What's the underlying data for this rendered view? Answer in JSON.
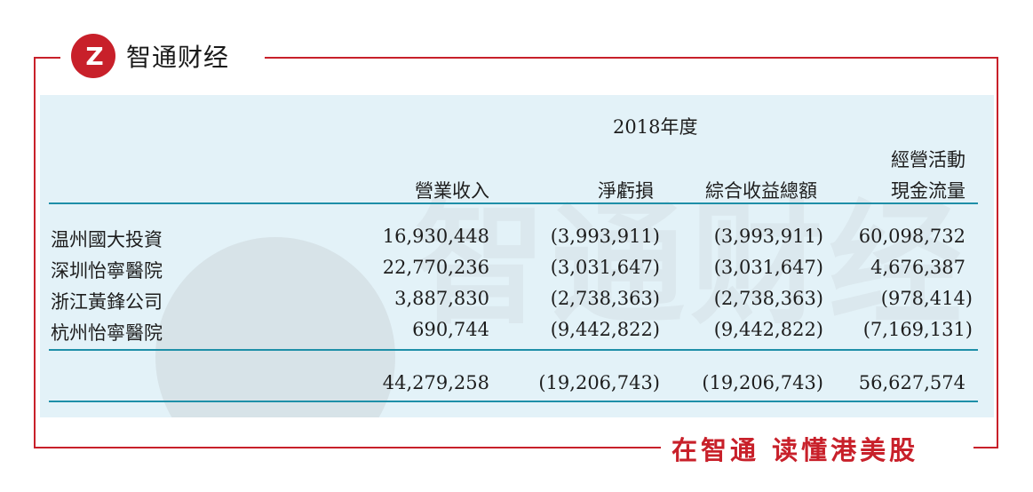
{
  "brand": {
    "logo_mark": "Z",
    "name": "智通财经",
    "slogan": "在智通 读懂港美股"
  },
  "table": {
    "period": "2018年度",
    "columns": [
      "營業收入",
      "淨虧損",
      "綜合收益總額",
      "經營活動\n現金流量"
    ],
    "col4_line1": "經營活動",
    "col4_line2": "現金流量",
    "rows": [
      {
        "name": "温州國大投資",
        "revenue": "16,930,448",
        "net_loss": "(3,993,911)",
        "total_comprehensive": "(3,993,911)",
        "operating_cf": "60,098,732"
      },
      {
        "name": "深圳怡寧醫院",
        "revenue": "22,770,236",
        "net_loss": "(3,031,647)",
        "total_comprehensive": "(3,031,647)",
        "operating_cf": "4,676,387"
      },
      {
        "name": "浙江黃鋒公司",
        "revenue": "3,887,830",
        "net_loss": "(2,738,363)",
        "total_comprehensive": "(2,738,363)",
        "operating_cf": "(978,414)"
      },
      {
        "name": "杭州怡寧醫院",
        "revenue": "690,744",
        "net_loss": "(9,442,822)",
        "total_comprehensive": "(9,442,822)",
        "operating_cf": "(7,169,131)"
      }
    ],
    "total": {
      "revenue": "44,279,258",
      "net_loss": "(19,206,743)",
      "total_comprehensive": "(19,206,743)",
      "operating_cf": "56,627,574"
    }
  },
  "colors": {
    "brand_red": "#c8202a",
    "panel_bg": "#e3f2f8",
    "rule": "#1e8fa8"
  }
}
